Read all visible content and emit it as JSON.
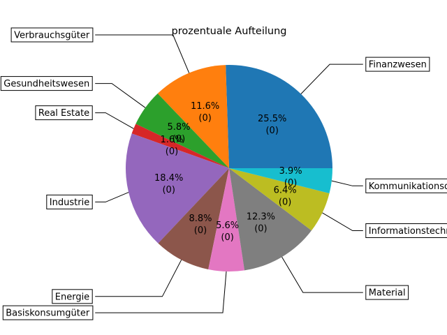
{
  "chart_data": {
    "type": "pie",
    "title": "prozentuale Aufteilung",
    "slices": [
      {
        "label": "Finanzwesen",
        "value": 25.5,
        "pct_text": "25.5%",
        "count_text": "(0)",
        "color": "#1f77b4"
      },
      {
        "label": "Verbrauchsgüter",
        "value": 11.6,
        "pct_text": "11.6%",
        "count_text": "(0)",
        "color": "#ff7f0e"
      },
      {
        "label": "Gesundheitswesen",
        "value": 5.8,
        "pct_text": "5.8%",
        "count_text": "(0)",
        "color": "#2ca02c"
      },
      {
        "label": "Real Estate",
        "value": 1.6,
        "pct_text": "1.6%",
        "count_text": "(0)",
        "color": "#d62728"
      },
      {
        "label": "Industrie",
        "value": 18.4,
        "pct_text": "18.4%",
        "count_text": "(0)",
        "color": "#9467bd"
      },
      {
        "label": "Energie",
        "value": 8.8,
        "pct_text": "8.8%",
        "count_text": "(0)",
        "color": "#8c564b"
      },
      {
        "label": "Basiskonsumgüter",
        "value": 5.6,
        "pct_text": "5.6%",
        "count_text": "(0)",
        "color": "#e377c2"
      },
      {
        "label": "Material",
        "value": 12.3,
        "pct_text": "12.3%",
        "count_text": "(0)",
        "color": "#7f7f7f"
      },
      {
        "label": "Informationstechnologie",
        "value": 6.4,
        "pct_text": "6.4%",
        "count_text": "(0)",
        "color": "#bcbd22"
      },
      {
        "label": "Kommunikationsdienste",
        "value": 3.9,
        "pct_text": "3.9%",
        "count_text": "(0)",
        "color": "#17becf"
      }
    ],
    "start_angle_deg": 0,
    "direction": "counterclockwise"
  }
}
